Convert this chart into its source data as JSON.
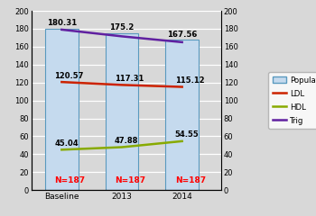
{
  "categories": [
    "Baseline",
    "2013",
    "2014"
  ],
  "bar_values": [
    180.31,
    175.2,
    167.56
  ],
  "ldl_values": [
    120.57,
    117.31,
    115.12
  ],
  "hdl_values": [
    45.04,
    47.88,
    54.55
  ],
  "trig_values": [
    179.0,
    171.5,
    165.0
  ],
  "bar_labels": [
    "180.31",
    "175.2",
    "167.56"
  ],
  "ldl_labels": [
    "120.57",
    "117.31",
    "115.12"
  ],
  "hdl_labels": [
    "45.04",
    "47.88",
    "54.55"
  ],
  "n_label": "N=187",
  "n_color": "#ff0000",
  "bar_color_top": "#7ab0dc",
  "bar_color_bot": "#c5daee",
  "bar_edge_color": "#5a9abf",
  "ldl_color": "#cc2200",
  "hdl_color": "#88aa00",
  "trig_color": "#6020a0",
  "ylim": [
    0,
    200
  ],
  "yticks": [
    0,
    20,
    40,
    60,
    80,
    100,
    120,
    140,
    160,
    180,
    200
  ],
  "bg_color": "#d8d8d8",
  "legend_labels": [
    "Population",
    "LDL",
    "HDL",
    "Trig"
  ]
}
